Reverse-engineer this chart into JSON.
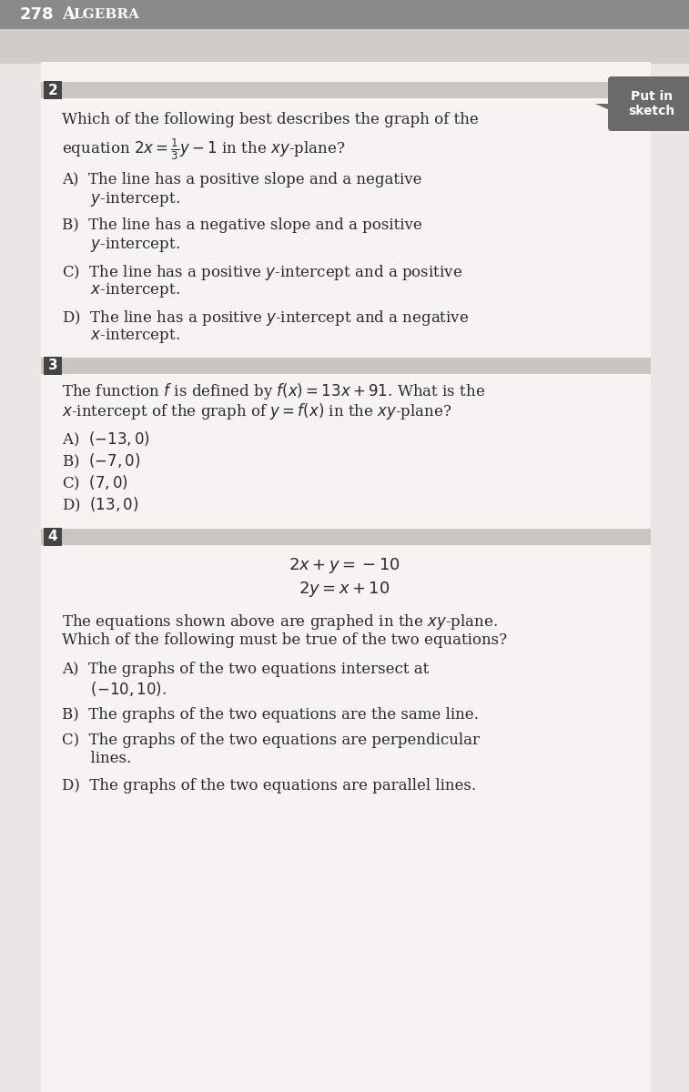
{
  "header_number": "278",
  "header_text": "Algebra",
  "page_bg": "#e8e7e3",
  "header_bg": "#8a8a8a",
  "header_text_color": "#ffffff",
  "content_bg": "#f0efeb",
  "band_color": "#c8c6c0",
  "num_box_color": "#444444",
  "num_box_text_color": "#ffffff",
  "put_in_sketch_bg": "#6a6a6a",
  "text_color": "#2a2a2a",
  "q2_question_line1": "Which of the following best describes the graph of the",
  "q2_question_line2": "equation $2x = \\frac{1}{3}y - 1$ in the $xy$-plane?",
  "q2_A1": "A)  The line has a positive slope and a negative",
  "q2_A2": "      $y$-intercept.",
  "q2_B1": "B)  The line has a negative slope and a positive",
  "q2_B2": "      $y$-intercept.",
  "q2_C1": "C)  The line has a positive $y$-intercept and a positive",
  "q2_C2": "      $x$-intercept.",
  "q2_D1": "D)  The line has a positive $y$-intercept and a negative",
  "q2_D2": "      $x$-intercept.",
  "q3_question_line1": "The function $f$ is defined by $f(x) = 13x + 91$. What is the",
  "q3_question_line2": "$x$-intercept of the graph of $y = f(x)$ in the $xy$-plane?",
  "q3_A": "A)  $(-13, 0)$",
  "q3_B": "B)  $(-7, 0)$",
  "q3_C": "C)  $(7, 0)$",
  "q3_D": "D)  $(13, 0)$",
  "q4_eq1": "$2x + y = -10$",
  "q4_eq2": "$2y = x + 10$",
  "q4_question_line1": "The equations shown above are graphed in the $xy$-plane.",
  "q4_question_line2": "Which of the following must be true of the two equations?",
  "q4_A1": "A)  The graphs of the two equations intersect at",
  "q4_A2": "      $(-10, 10)$.",
  "q4_B": "B)  The graphs of the two equations are the same line.",
  "q4_C1": "C)  The graphs of the two equations are perpendicular",
  "q4_C2": "      lines.",
  "q4_D": "D)  The graphs of the two equations are parallel lines.",
  "question_fontsize": 12.0,
  "answer_fontsize": 12.0,
  "header_fontsize": 13.0
}
